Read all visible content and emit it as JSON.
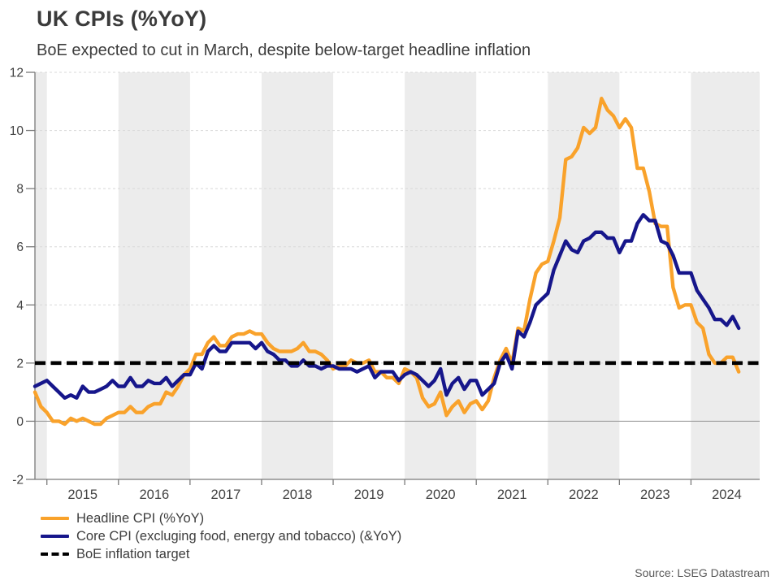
{
  "header": {
    "title": "UK CPIs (%YoY)",
    "subtitle": "BoE expected to cut in March, despite below-target headline inflation"
  },
  "footer": {
    "source": "Source: LSEG Datastream"
  },
  "chart_data": {
    "type": "line",
    "title": "UK CPIs (%YoY)",
    "x_frequency": "monthly",
    "x_start": "2014-11",
    "x_end": "2024-09",
    "x_domain_years": [
      2014.833,
      2024.96
    ],
    "x_tick_years": [
      2015,
      2016,
      2017,
      2018,
      2019,
      2020,
      2021,
      2022,
      2023,
      2024
    ],
    "ylim": [
      -2,
      12
    ],
    "y_ticks": [
      -2,
      0,
      2,
      4,
      6,
      8,
      10,
      12
    ],
    "grid": "horizontal-dashed",
    "legend_position": "bottom-left",
    "band_color": "#ececec",
    "shaded_year_bands": [
      2014,
      2016,
      2018,
      2020,
      2022,
      2024
    ],
    "series": [
      {
        "name": "Headline CPI (%YoY)",
        "color": "#F9A22B",
        "values": [
          1.0,
          0.5,
          0.3,
          0.0,
          0.0,
          -0.1,
          0.1,
          0.0,
          0.1,
          0.0,
          -0.1,
          -0.1,
          0.1,
          0.2,
          0.3,
          0.3,
          0.5,
          0.3,
          0.3,
          0.5,
          0.6,
          0.6,
          1.0,
          0.9,
          1.2,
          1.6,
          1.8,
          2.3,
          2.3,
          2.7,
          2.9,
          2.6,
          2.6,
          2.9,
          3.0,
          3.0,
          3.1,
          3.0,
          3.0,
          2.7,
          2.5,
          2.4,
          2.4,
          2.4,
          2.5,
          2.7,
          2.4,
          2.4,
          2.3,
          2.1,
          1.8,
          1.9,
          1.9,
          2.1,
          2.0,
          2.0,
          2.1,
          1.7,
          1.7,
          1.5,
          1.5,
          1.3,
          1.8,
          1.7,
          1.5,
          0.8,
          0.5,
          0.6,
          1.0,
          0.2,
          0.5,
          0.7,
          0.3,
          0.6,
          0.7,
          0.4,
          0.7,
          1.5,
          2.1,
          2.5,
          2.0,
          3.2,
          3.1,
          4.2,
          5.1,
          5.4,
          5.5,
          6.2,
          7.0,
          9.0,
          9.1,
          9.4,
          10.1,
          9.9,
          10.1,
          11.1,
          10.7,
          10.5,
          10.1,
          10.4,
          10.1,
          8.7,
          8.7,
          7.9,
          6.8,
          6.7,
          6.7,
          4.6,
          3.9,
          4.0,
          4.0,
          3.4,
          3.2,
          2.3,
          2.0,
          2.0,
          2.2,
          2.2,
          1.7
        ]
      },
      {
        "name": "Core CPI (excluging food, energy and tobacco) (&YoY)",
        "color": "#16168B",
        "values": [
          1.2,
          1.3,
          1.4,
          1.2,
          1.0,
          0.8,
          0.9,
          0.8,
          1.2,
          1.0,
          1.0,
          1.1,
          1.2,
          1.4,
          1.2,
          1.2,
          1.5,
          1.2,
          1.2,
          1.4,
          1.3,
          1.3,
          1.5,
          1.2,
          1.4,
          1.6,
          1.6,
          2.0,
          1.8,
          2.4,
          2.6,
          2.4,
          2.4,
          2.7,
          2.7,
          2.7,
          2.7,
          2.5,
          2.7,
          2.4,
          2.3,
          2.1,
          2.1,
          1.9,
          1.9,
          2.1,
          1.9,
          1.9,
          1.8,
          1.9,
          1.9,
          1.8,
          1.8,
          1.8,
          1.7,
          1.8,
          1.9,
          1.5,
          1.7,
          1.7,
          1.7,
          1.4,
          1.6,
          1.7,
          1.6,
          1.4,
          1.2,
          1.4,
          1.8,
          0.9,
          1.3,
          1.5,
          1.1,
          1.4,
          1.4,
          0.9,
          1.1,
          1.3,
          2.0,
          2.3,
          1.8,
          3.1,
          2.9,
          3.4,
          4.0,
          4.2,
          4.4,
          5.2,
          5.7,
          6.2,
          5.9,
          5.8,
          6.2,
          6.3,
          6.5,
          6.5,
          6.3,
          6.3,
          5.8,
          6.2,
          6.2,
          6.8,
          7.1,
          6.9,
          6.9,
          6.2,
          6.1,
          5.7,
          5.1,
          5.1,
          5.1,
          4.5,
          4.2,
          3.9,
          3.5,
          3.5,
          3.3,
          3.6,
          3.2
        ]
      }
    ],
    "target_line": {
      "name": "BoE inflation target",
      "color": "#000000",
      "value": 2,
      "style": "dashed"
    }
  }
}
